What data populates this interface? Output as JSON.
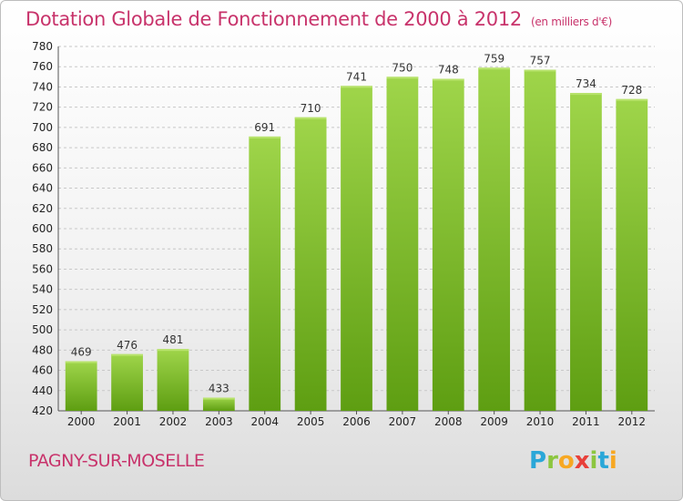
{
  "title": "Dotation Globale de Fonctionnement de 2000 à 2012",
  "subtitle": "(en milliers d'€)",
  "commune": "PAGNY-SUR-MOSELLE",
  "logo": {
    "letters": [
      "P",
      "r",
      "o",
      "x",
      "i",
      "t",
      "i"
    ],
    "colors": [
      "#2aa7d8",
      "#8cc63f",
      "#f7a823",
      "#e8403a",
      "#8cc63f",
      "#2aa7d8",
      "#f7a823"
    ]
  },
  "chart_data": {
    "type": "bar",
    "title": "Dotation Globale de Fonctionnement de 2000 à 2012",
    "subtitle": "(en milliers d'€)",
    "categories": [
      "2000",
      "2001",
      "2002",
      "2003",
      "2004",
      "2005",
      "2006",
      "2007",
      "2008",
      "2009",
      "2010",
      "2011",
      "2012"
    ],
    "values": [
      469,
      476,
      481,
      433,
      691,
      710,
      741,
      750,
      748,
      759,
      757,
      734,
      728
    ],
    "ylim": [
      420,
      780
    ],
    "yticks": [
      420,
      440,
      460,
      480,
      500,
      520,
      540,
      560,
      580,
      600,
      620,
      640,
      660,
      680,
      700,
      720,
      740,
      760,
      780
    ],
    "grid": true,
    "bar_color": "#7fbf2e"
  }
}
